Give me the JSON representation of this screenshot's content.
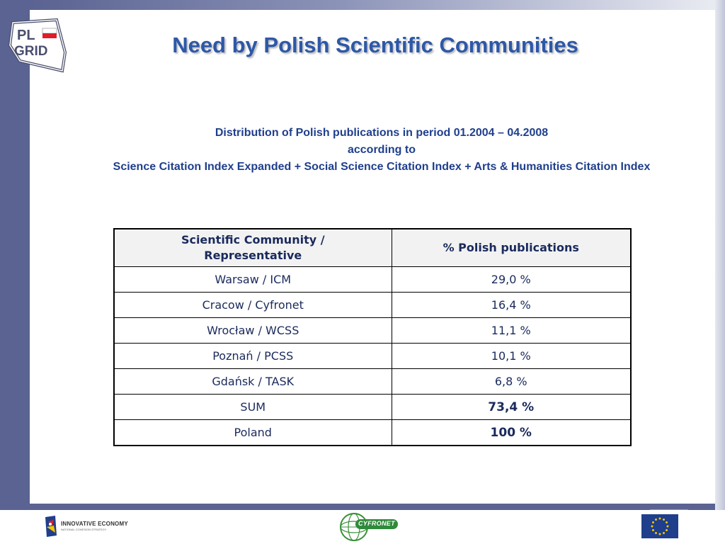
{
  "slide": {
    "title": "Need by Polish Scientific Communities",
    "subtitle_lines": [
      "Distribution of Polish publications in period 01.2004 – 04.2008",
      "according to",
      "Science Citation Index Expanded + Social Science Citation Index + Arts & Humanities Citation Index"
    ]
  },
  "table": {
    "headers": [
      "Scientific Community / Representative",
      "% Polish publications"
    ],
    "header_lines": [
      "Scientific Community /",
      "Representative"
    ],
    "rows": [
      {
        "community": "Warsaw / ICM",
        "percent": "29,0 %"
      },
      {
        "community": "Cracow / Cyfronet",
        "percent": "16,4 %"
      },
      {
        "community": "Wrocław / WCSS",
        "percent": "11,1 %"
      },
      {
        "community": "Poznań / PCSS",
        "percent": "10,1 %"
      },
      {
        "community": "Gdańsk / TASK",
        "percent": "6,8 %"
      },
      {
        "community": "SUM",
        "percent": "73,4 %"
      },
      {
        "community": "Poland",
        "percent": "100 %"
      }
    ]
  },
  "logos": {
    "plgrid_top": "PL",
    "plgrid_bottom": "GRID",
    "innovative_economy": "INNOVATIVE ECONOMY",
    "innovative_economy_sub": "NATIONAL COHESION STRATEGY",
    "cyfronet": "CYFRONET"
  },
  "colors": {
    "title": "#2d58a8",
    "subtitle": "#1f3f8c",
    "band": "#5a6391",
    "eu_blue": "#1f3f8c",
    "eu_star": "#f5c400"
  },
  "icons": [
    "plgrid-logo-icon",
    "innovative-economy-logo-icon",
    "cyfronet-logo-icon",
    "eu-flag-icon"
  ]
}
